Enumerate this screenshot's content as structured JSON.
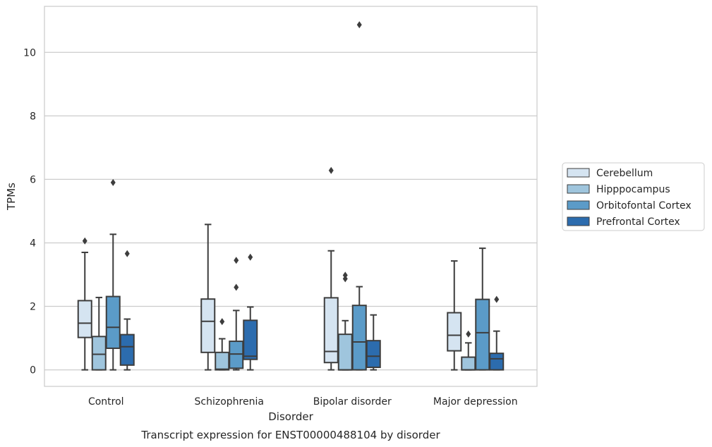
{
  "chart_data": {
    "type": "boxplot",
    "title": "Transcript expression for ENST00000488104 by disorder",
    "xlabel": "Disorder",
    "ylabel": "TPMs",
    "ylim": [
      -0.52,
      11.45
    ],
    "yticks": [
      0,
      2,
      4,
      6,
      8,
      10
    ],
    "grid": "horizontal",
    "legend_position": "right",
    "categories": [
      "Control",
      "Schizophrenia",
      "Bipolar disorder",
      "Major depression"
    ],
    "series": [
      {
        "name": "Cerebellum",
        "color": "#d5e4f1",
        "boxes": [
          {
            "whislo": 0.0,
            "q1": 1.02,
            "med": 1.47,
            "q3": 2.18,
            "whishi": 3.7,
            "fliers": [
              4.06
            ]
          },
          {
            "whislo": 0.0,
            "q1": 0.55,
            "med": 1.53,
            "q3": 2.23,
            "whishi": 4.58,
            "fliers": []
          },
          {
            "whislo": 0.0,
            "q1": 0.23,
            "med": 0.58,
            "q3": 2.27,
            "whishi": 3.75,
            "fliers": [
              6.28
            ]
          },
          {
            "whislo": 0.0,
            "q1": 0.6,
            "med": 1.09,
            "q3": 1.8,
            "whishi": 3.43,
            "fliers": []
          }
        ]
      },
      {
        "name": "Hipppocampus",
        "color": "#9fc5dd",
        "boxes": [
          {
            "whislo": 0.0,
            "q1": 0.0,
            "med": 0.49,
            "q3": 1.05,
            "whishi": 2.28,
            "fliers": []
          },
          {
            "whislo": 0.0,
            "q1": 0.0,
            "med": 0.02,
            "q3": 0.55,
            "whishi": 0.98,
            "fliers": [
              1.52
            ]
          },
          {
            "whislo": 0.0,
            "q1": 0.0,
            "med": 0.0,
            "q3": 1.12,
            "whishi": 1.55,
            "fliers": [
              2.87,
              2.98
            ]
          },
          {
            "whislo": 0.0,
            "q1": 0.0,
            "med": 0.0,
            "q3": 0.4,
            "whishi": 0.85,
            "fliers": [
              1.13
            ]
          }
        ]
      },
      {
        "name": "Orbitofontal Cortex",
        "color": "#5b9bc8",
        "boxes": [
          {
            "whislo": 0.0,
            "q1": 0.68,
            "med": 1.34,
            "q3": 2.31,
            "whishi": 4.27,
            "fliers": [
              5.9
            ]
          },
          {
            "whislo": 0.0,
            "q1": 0.05,
            "med": 0.5,
            "q3": 0.9,
            "whishi": 1.87,
            "fliers": [
              2.6,
              3.45
            ]
          },
          {
            "whislo": 0.0,
            "q1": 0.0,
            "med": 0.88,
            "q3": 2.03,
            "whishi": 2.62,
            "fliers": [
              10.87
            ]
          },
          {
            "whislo": 0.0,
            "q1": 0.0,
            "med": 1.17,
            "q3": 2.22,
            "whishi": 3.83,
            "fliers": []
          }
        ]
      },
      {
        "name": "Prefrontal Cortex",
        "color": "#2c6cae",
        "boxes": [
          {
            "whislo": 0.0,
            "q1": 0.15,
            "med": 0.73,
            "q3": 1.11,
            "whishi": 1.6,
            "fliers": [
              3.66
            ]
          },
          {
            "whislo": 0.0,
            "q1": 0.33,
            "med": 0.43,
            "q3": 1.56,
            "whishi": 1.98,
            "fliers": [
              3.55
            ]
          },
          {
            "whislo": 0.0,
            "q1": 0.08,
            "med": 0.43,
            "q3": 0.92,
            "whishi": 1.73,
            "fliers": []
          },
          {
            "whislo": 0.0,
            "q1": 0.0,
            "med": 0.35,
            "q3": 0.52,
            "whishi": 1.22,
            "fliers": [
              2.22
            ]
          }
        ]
      }
    ]
  }
}
